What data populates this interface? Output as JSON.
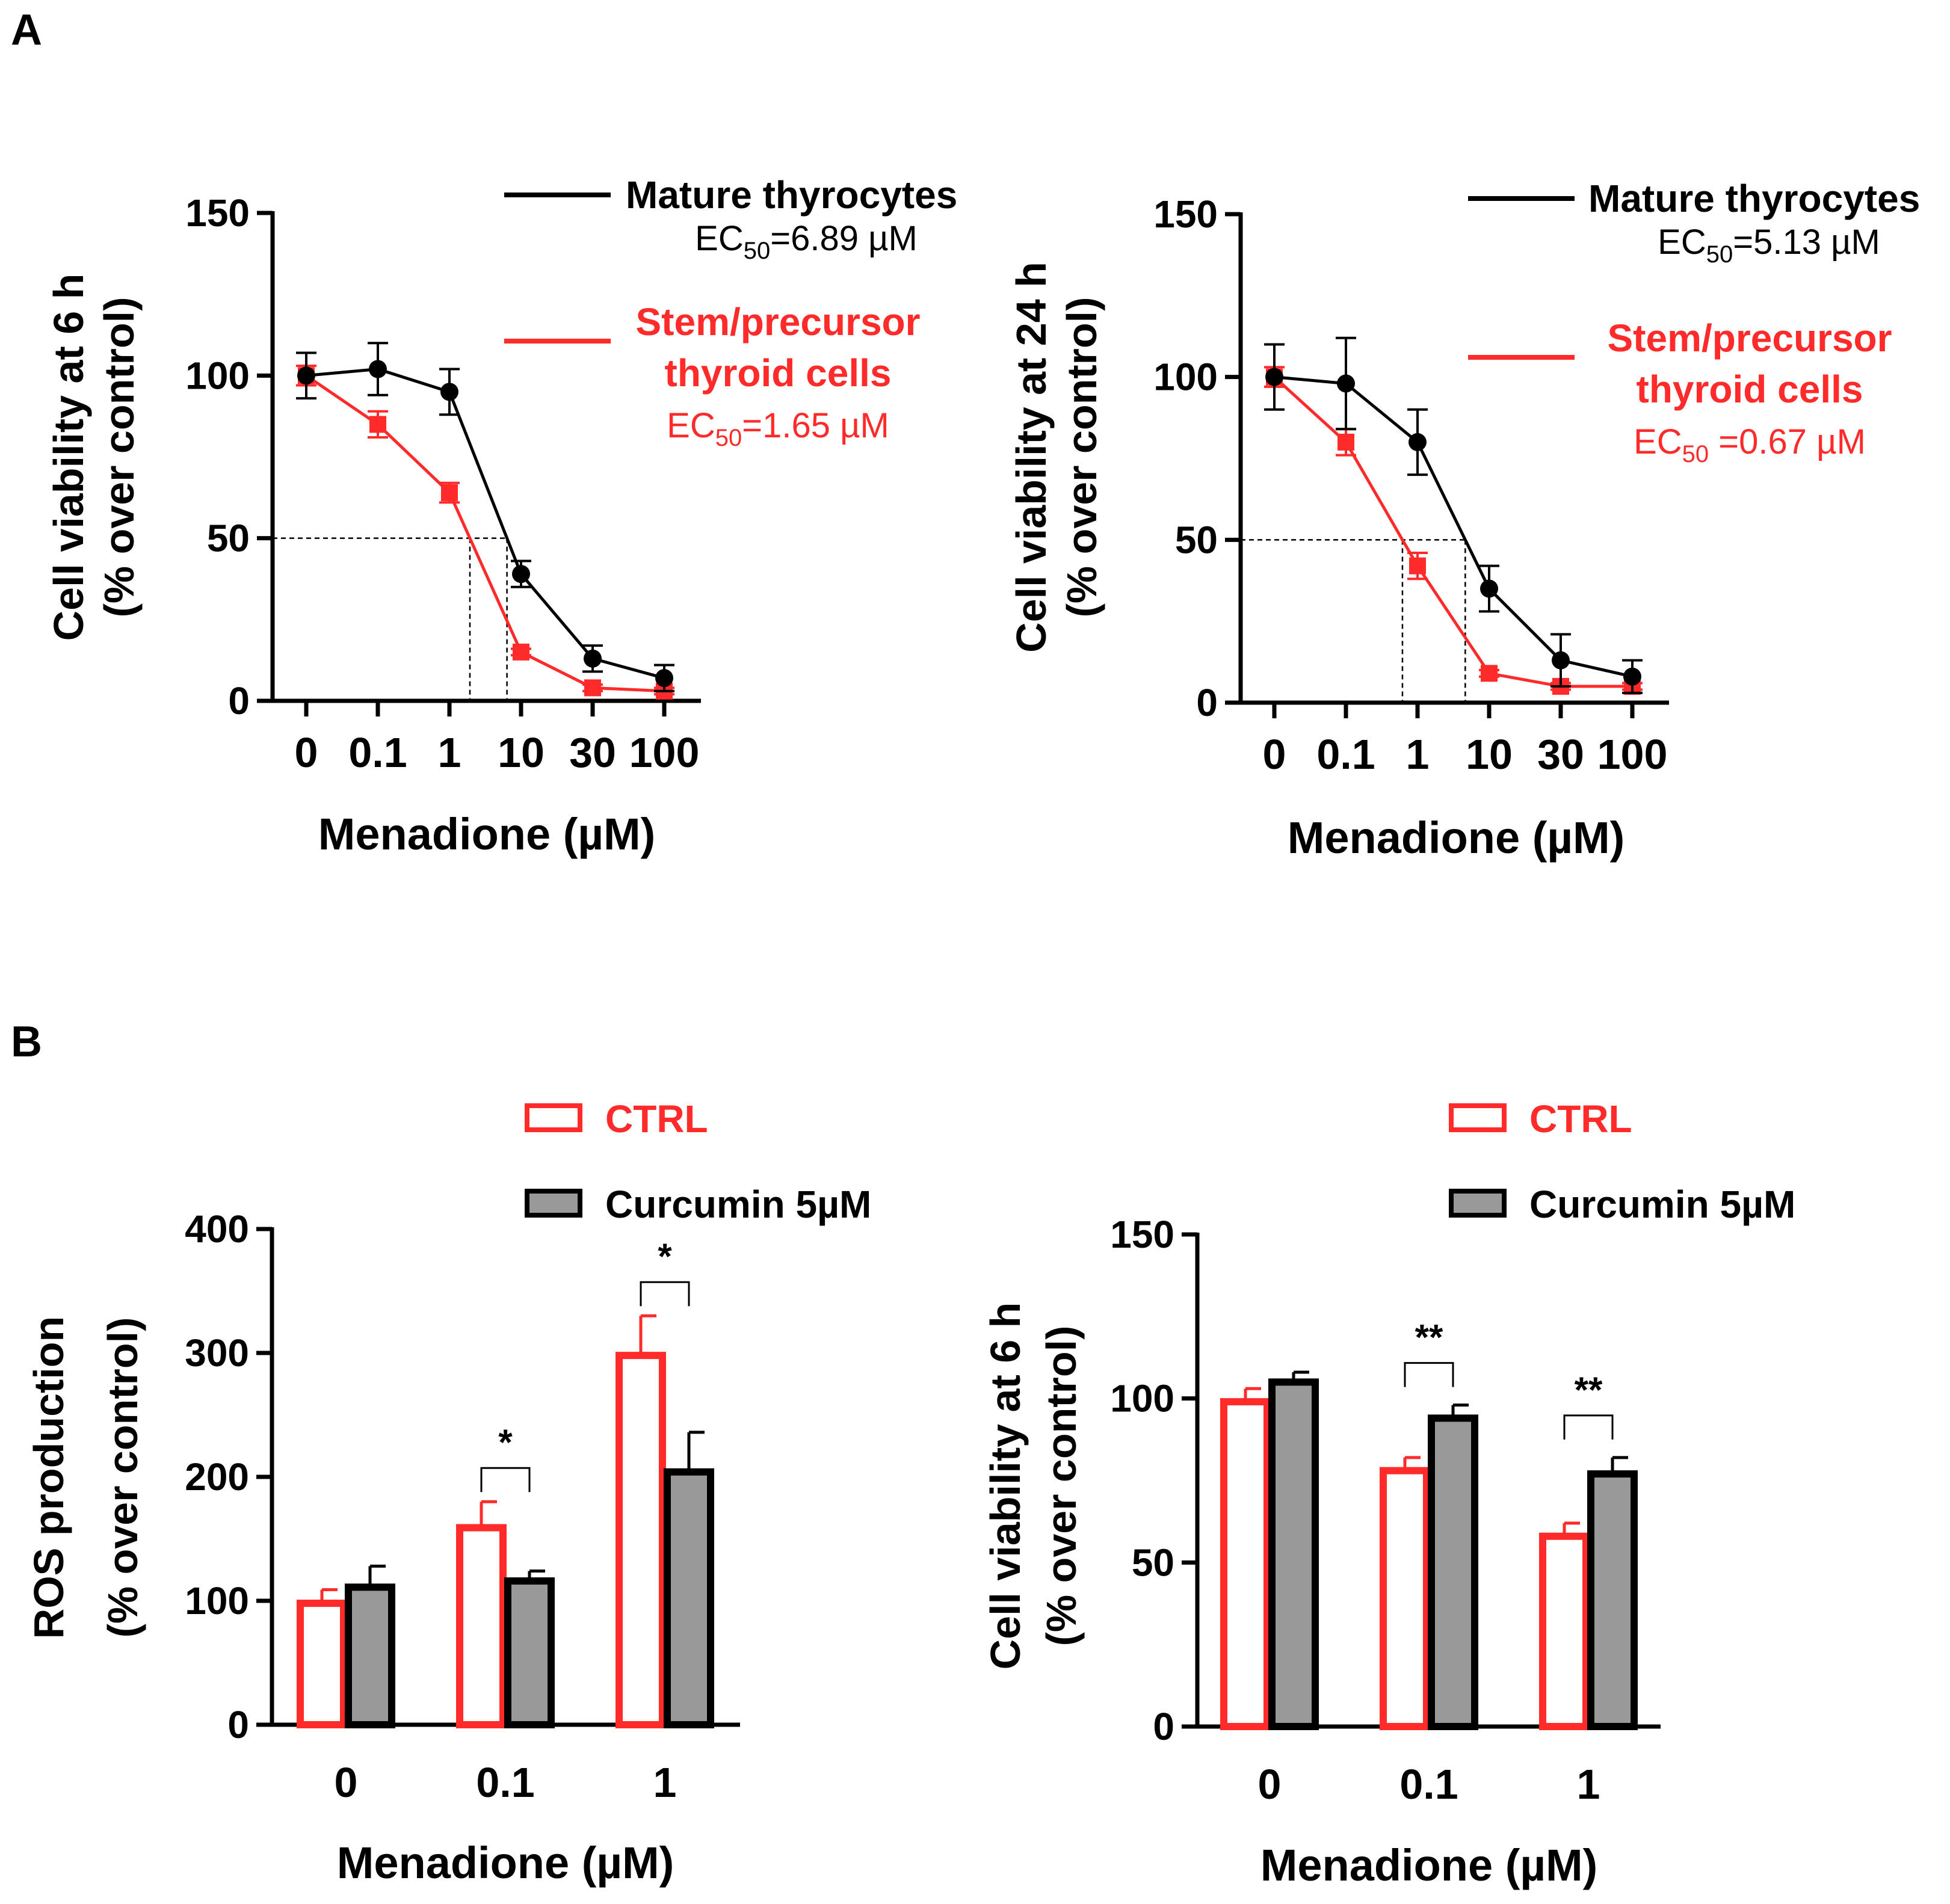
{
  "panel_labels": {
    "a": "A",
    "b": "B"
  },
  "colors": {
    "black": "#000000",
    "red": "#ff2a2a",
    "gray": "#999999"
  },
  "chart_data": [
    {
      "id": "A1",
      "type": "line",
      "categories": [
        "0",
        "0.1",
        "1",
        "10",
        "30",
        "100"
      ],
      "xlabel": "Menadione (µM)",
      "ylabel1": "Cell viability at 6 h",
      "ylabel2": "(% over control)",
      "ylim": [
        0,
        150
      ],
      "yticks": [
        "0",
        "50",
        "100",
        "150"
      ],
      "series": [
        {
          "name": "Mature thyrocytes",
          "color": "#000000",
          "marker": "circle",
          "values": [
            100,
            102,
            95,
            39,
            13,
            7
          ],
          "errors": [
            7,
            8,
            7,
            4,
            4,
            4
          ],
          "ec_prefix": "EC",
          "ec_sub": "50",
          "ec_value": "=6.89",
          "ec_unit": "µM"
        },
        {
          "name": "Stem/precursor",
          "name2": "thyroid cells",
          "color": "#ff2a2a",
          "marker": "square",
          "values": [
            100,
            85,
            64,
            15,
            4,
            3
          ],
          "errors": [
            3,
            4,
            3,
            1,
            1,
            1
          ],
          "ec_prefix": "EC",
          "ec_sub": "50",
          "ec_value": "=1.65",
          "ec_unit": "µM"
        }
      ],
      "reference_line": 50
    },
    {
      "id": "A2",
      "type": "line",
      "categories": [
        "0",
        "0.1",
        "1",
        "10",
        "30",
        "100"
      ],
      "xlabel": "Menadione (µM)",
      "ylabel1": "Cell viability at 24 h",
      "ylabel2": "(% over control)",
      "ylim": [
        0,
        150
      ],
      "yticks": [
        "0",
        "50",
        "100",
        "150"
      ],
      "series": [
        {
          "name": "Mature thyrocytes",
          "color": "#000000",
          "marker": "circle",
          "values": [
            100,
            98,
            80,
            35,
            13,
            8
          ],
          "errors": [
            10,
            14,
            10,
            7,
            8,
            5
          ],
          "ec_prefix": "EC",
          "ec_sub": "50",
          "ec_value": "=5.13",
          "ec_unit": "µM"
        },
        {
          "name": "Stem/precursor",
          "name2": "thyroid cells",
          "color": "#ff2a2a",
          "marker": "square",
          "values": [
            100,
            80,
            42,
            9,
            5,
            5
          ],
          "errors": [
            3,
            4,
            4,
            1,
            1,
            1
          ],
          "ec_prefix": "EC",
          "ec_sub": "50",
          "ec_value": " =0.67",
          "ec_unit": "µM"
        }
      ],
      "reference_line": 50
    },
    {
      "id": "B1",
      "type": "bar",
      "categories": [
        "0",
        "0.1",
        "1"
      ],
      "xlabel": "Menadione (µM)",
      "ylabel1": "ROS production",
      "ylabel2": "(% over control)",
      "ylim": [
        0,
        400
      ],
      "yticks": [
        "0",
        "100",
        "200",
        "300",
        "400"
      ],
      "series": [
        {
          "name": "CTRL",
          "values": [
            98,
            159,
            298
          ],
          "errors": [
            11,
            21,
            32
          ]
        },
        {
          "name": "Curcumin 5µM",
          "values": [
            111,
            116,
            204
          ],
          "errors": [
            17,
            8,
            32
          ]
        }
      ],
      "significance": [
        {
          "category": 1,
          "label": "*"
        },
        {
          "category": 2,
          "label": "*"
        }
      ]
    },
    {
      "id": "B2",
      "type": "bar",
      "categories": [
        "0",
        "0.1",
        "1"
      ],
      "xlabel": "Menadione (µM)",
      "ylabel1": "Cell viability at 6 h",
      "ylabel2": "(% over control)",
      "ylim": [
        0,
        150
      ],
      "yticks": [
        "0",
        "50",
        "100",
        "150"
      ],
      "series": [
        {
          "name": "CTRL",
          "values": [
            99,
            78,
            58
          ],
          "errors": [
            4,
            4,
            4
          ]
        },
        {
          "name": "Curcumin 5µM",
          "values": [
            105,
            94,
            77
          ],
          "errors": [
            3,
            4,
            5
          ]
        }
      ],
      "significance": [
        {
          "category": 1,
          "label": "**"
        },
        {
          "category": 2,
          "label": "**"
        }
      ]
    }
  ]
}
